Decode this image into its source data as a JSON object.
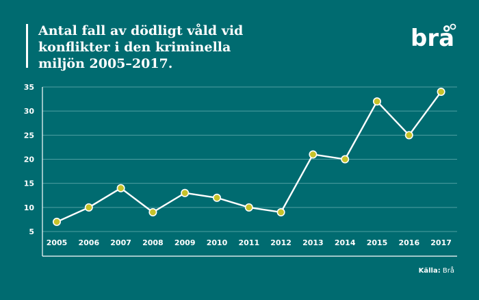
{
  "header": {
    "title_lines": [
      "Antal fall av dödligt våld vid",
      "konflikter i den kriminella",
      "miljön 2005–2017."
    ],
    "logo_text": "brå"
  },
  "source": {
    "label": "Källa:",
    "value": "Brå"
  },
  "colors": {
    "background": "#006b70",
    "line": "#ffffff",
    "marker": "#c6c22a",
    "grid": "#4f9fa2"
  },
  "chart_data": {
    "type": "line",
    "categories": [
      "2005",
      "2006",
      "2007",
      "2008",
      "2009",
      "2010",
      "2011",
      "2012",
      "2013",
      "2014",
      "2015",
      "2016",
      "2017"
    ],
    "series": [
      {
        "values": [
          7,
          10,
          14,
          9,
          13,
          12,
          10,
          9,
          21,
          20,
          32,
          25,
          34
        ]
      }
    ],
    "yticks": [
      5,
      10,
      15,
      20,
      25,
      30,
      35
    ],
    "ylim": [
      5,
      35
    ],
    "grid": true
  }
}
